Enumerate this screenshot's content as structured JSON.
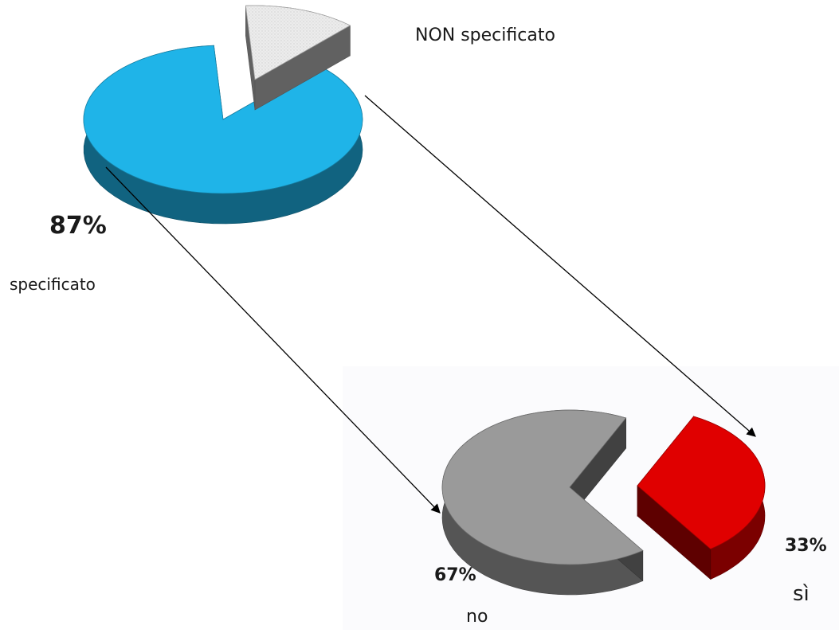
{
  "chart_data": [
    {
      "type": "pie",
      "slices": [
        {
          "label": "specificato",
          "value": 87,
          "value_label": "87%",
          "color": "#1fb4e8"
        },
        {
          "label": "NON specificato",
          "value": 13,
          "value_label": "",
          "color": "#e8e8e8"
        }
      ]
    },
    {
      "type": "pie",
      "slices": [
        {
          "label": "no",
          "value": 67,
          "value_label": "67%",
          "color": "#9a9a9a"
        },
        {
          "label": "sì",
          "value": 33,
          "value_label": "33%",
          "color": "#e00000"
        }
      ]
    }
  ]
}
